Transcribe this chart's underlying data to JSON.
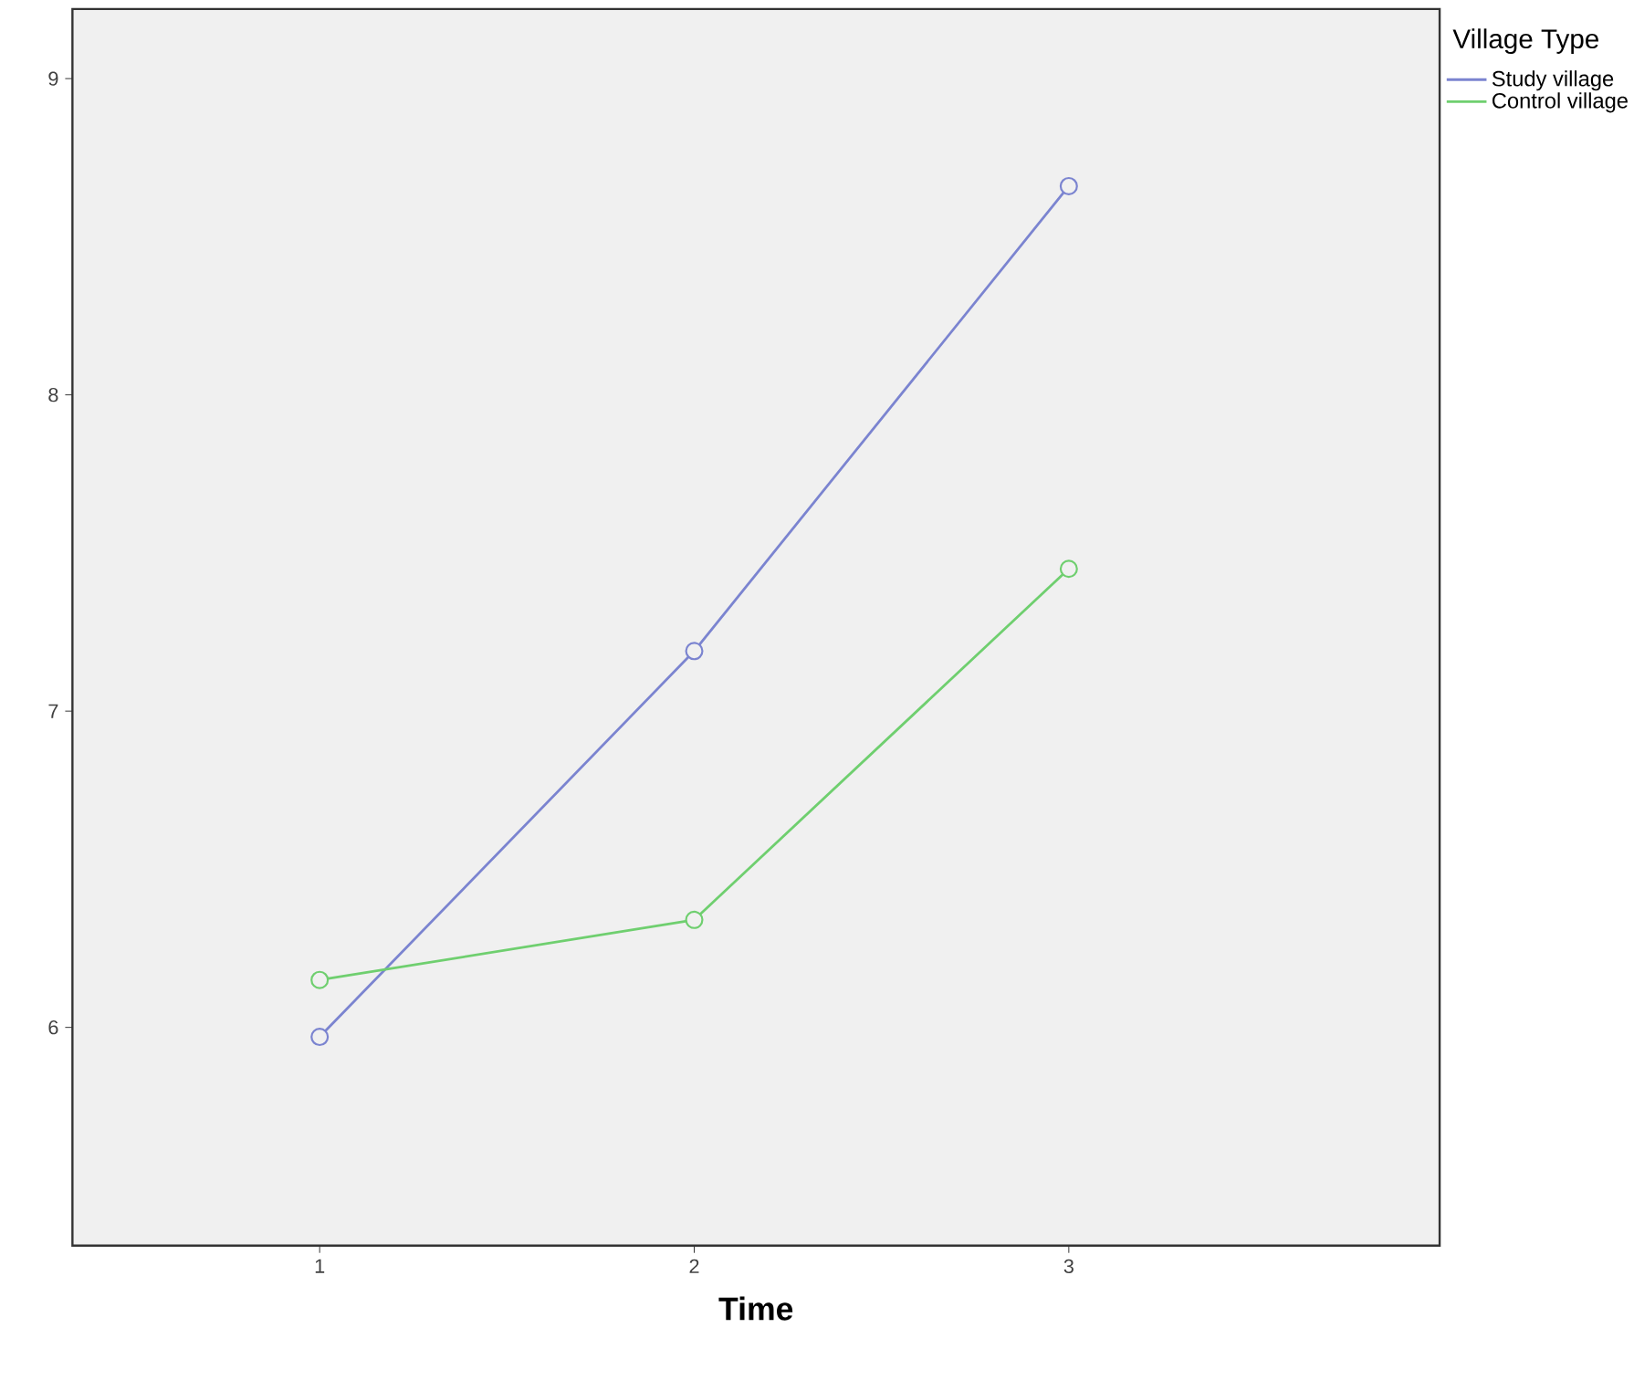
{
  "chart_data": {
    "type": "line",
    "xlabel": "Time",
    "legend_title": "Village Type",
    "x": [
      1,
      2,
      3
    ],
    "series": [
      {
        "name": "Study village",
        "color": "#7b84d0",
        "values": [
          5.97,
          7.19,
          8.66
        ]
      },
      {
        "name": "Control village",
        "color": "#6fcf6f",
        "values": [
          6.15,
          6.34,
          7.45
        ]
      }
    ],
    "xlim": [
      0.34,
      3.99
    ],
    "ylim": [
      5.31,
      9.22
    ],
    "xticks": [
      1,
      2,
      3
    ],
    "yticks": [
      6,
      7,
      8,
      9
    ],
    "grid": false,
    "legend": "top right",
    "marker": "circle",
    "line_style": "solid"
  }
}
